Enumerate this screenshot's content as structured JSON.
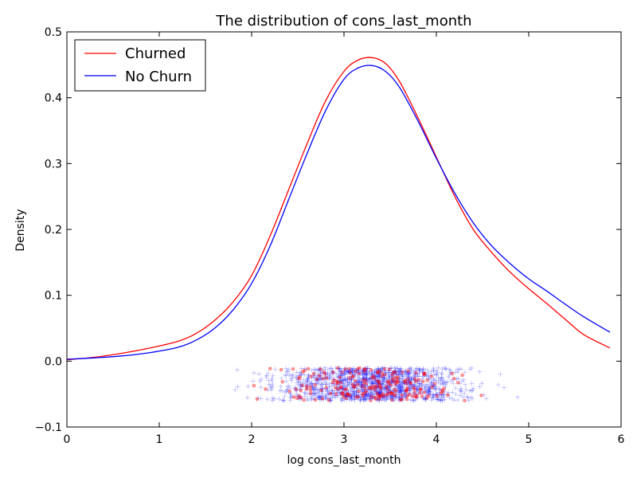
{
  "chart_data": {
    "type": "line",
    "title": "The distribution of cons_last_month",
    "xlabel": "log cons_last_month",
    "ylabel": "Density",
    "xlim": [
      0,
      6
    ],
    "ylim": [
      -0.1,
      0.5
    ],
    "xticks": [
      "0",
      "1",
      "2",
      "3",
      "4",
      "5",
      "6"
    ],
    "yticks": [
      "−0.1",
      "0.0",
      "0.1",
      "0.2",
      "0.3",
      "0.4",
      "0.5"
    ],
    "grid": false,
    "legend": {
      "position": "top-left",
      "entries": [
        "Churned",
        "No Churn"
      ]
    },
    "series": [
      {
        "name": "Churned",
        "color": "#ff0000",
        "x": [
          0,
          0.3,
          0.6,
          0.9,
          1.2,
          1.4,
          1.6,
          1.8,
          2.0,
          2.2,
          2.4,
          2.6,
          2.8,
          3.0,
          3.15,
          3.3,
          3.45,
          3.6,
          3.8,
          4.0,
          4.2,
          4.4,
          4.6,
          4.8,
          5.0,
          5.2,
          5.4,
          5.6,
          5.88
        ],
        "y": [
          0.002,
          0.006,
          0.012,
          0.02,
          0.03,
          0.042,
          0.062,
          0.09,
          0.13,
          0.19,
          0.26,
          0.33,
          0.395,
          0.44,
          0.457,
          0.461,
          0.452,
          0.425,
          0.37,
          0.31,
          0.25,
          0.2,
          0.165,
          0.135,
          0.11,
          0.087,
          0.063,
          0.04,
          0.02
        ]
      },
      {
        "name": "No Churn",
        "color": "#0000ff",
        "x": [
          0,
          0.3,
          0.6,
          0.9,
          1.2,
          1.4,
          1.6,
          1.8,
          2.0,
          2.2,
          2.4,
          2.6,
          2.8,
          3.0,
          3.15,
          3.3,
          3.45,
          3.6,
          3.8,
          4.0,
          4.2,
          4.4,
          4.6,
          4.8,
          5.0,
          5.2,
          5.4,
          5.6,
          5.88
        ],
        "y": [
          0.003,
          0.005,
          0.008,
          0.013,
          0.021,
          0.032,
          0.05,
          0.078,
          0.118,
          0.175,
          0.245,
          0.315,
          0.38,
          0.428,
          0.445,
          0.449,
          0.44,
          0.416,
          0.365,
          0.308,
          0.255,
          0.21,
          0.175,
          0.148,
          0.125,
          0.106,
          0.086,
          0.067,
          0.044
        ]
      }
    ],
    "rug": [
      {
        "name": "Churned",
        "marker": "dot",
        "color": "#ff0000",
        "y_range": [
          -0.06,
          -0.01
        ],
        "x_range": [
          0.8,
          5.8
        ],
        "count": 220,
        "center": 3.3,
        "spread": 0.8
      },
      {
        "name": "No Churn",
        "marker": "plus",
        "color": "#0000ff",
        "y_range": [
          -0.06,
          -0.01
        ],
        "x_range": [
          0.3,
          5.85
        ],
        "count": 1400,
        "center": 3.3,
        "spread": 0.85
      }
    ]
  }
}
